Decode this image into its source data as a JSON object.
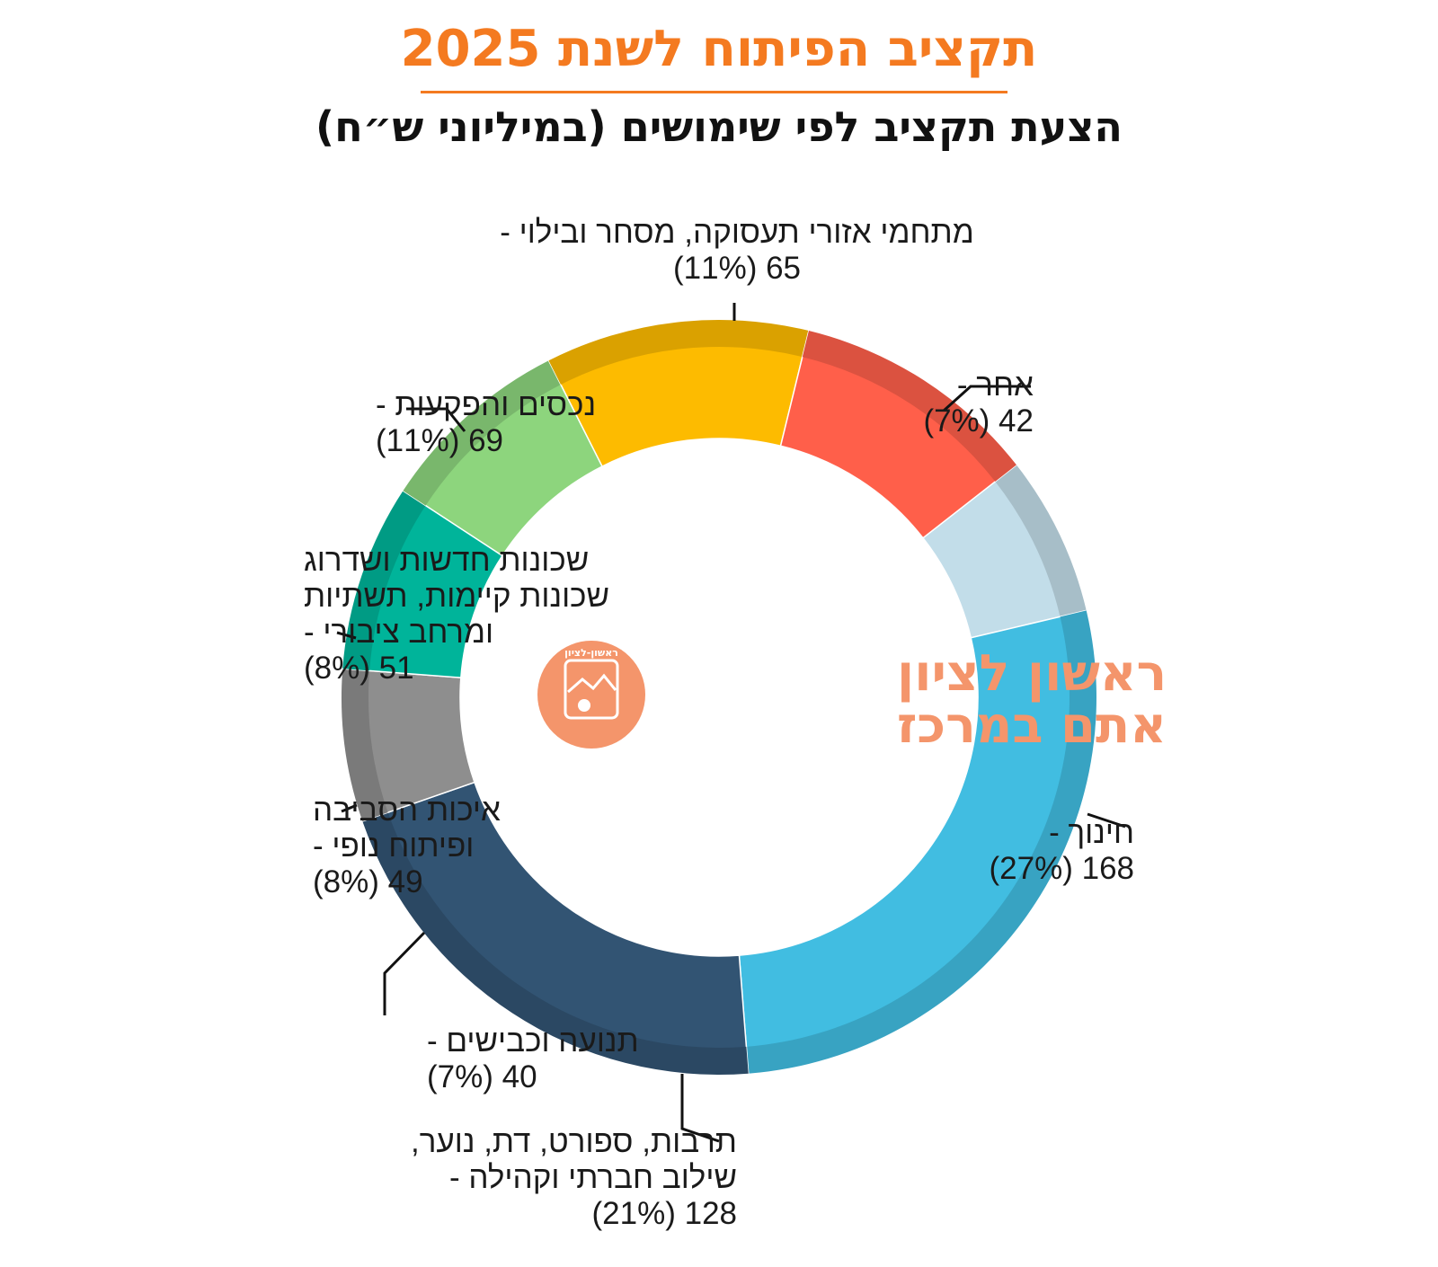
{
  "title": "תקציב הפיתוח לשנת 2025",
  "subtitle": "הצעת תקציב לפי שימושים (במיליוני ש״ח)",
  "logo": {
    "line1": "ראשון לציון",
    "line2": "אתם במרכז",
    "emblem_text": "ראשון-לציון",
    "color": "#f4956b"
  },
  "chart_data": {
    "type": "pie",
    "donut": true,
    "unit": "במיליוני ש״ח",
    "slices": [
      {
        "label": "אחר",
        "value": 42,
        "percent": "7%",
        "color": "#c2dde9",
        "label_lines": [
          "אחר -",
          "(7%) 42"
        ]
      },
      {
        "label": "חינוך",
        "value": 168,
        "percent": "27%",
        "color": "#41bde1",
        "label_lines": [
          "חינוך -",
          "(27%) 168"
        ]
      },
      {
        "label": "תרבות, ספורט, דת, נוער, שילוב חברתי וקהילה",
        "value": 128,
        "percent": "21%",
        "color": "#325473",
        "label_lines": [
          "תרבות, ספורט, דת, נוער,",
          "שילוב חברתי וקהילה -",
          "(21%) 128"
        ]
      },
      {
        "label": "תנועה וכבישים",
        "value": 40,
        "percent": "7%",
        "color": "#8e8e8e",
        "label_lines": [
          "תנועה וכבישים -",
          "(7%) 40"
        ]
      },
      {
        "label": "איכות הסביבה ופיתוח נופי",
        "value": 49,
        "percent": "8%",
        "color": "#00b49a",
        "label_lines": [
          "איכות הסביבה",
          "ופיתוח נופי -",
          "(8%) 49"
        ]
      },
      {
        "label": "שכונות חדשות ושדרוג שכונות קיימות, תשתיות ומרחב ציבורי",
        "value": 51,
        "percent": "8%",
        "color": "#8dd57d",
        "label_lines": [
          "שכונות חדשות ושדרוג",
          "שכונות קיימות, תשתיות",
          "ומרחב ציבורי -",
          "(8%) 51"
        ]
      },
      {
        "label": "נכסים והפקעות",
        "value": 69,
        "percent": "11%",
        "color": "#fdbb00",
        "label_lines": [
          "נכסים והפקעות -",
          "(11%) 69"
        ]
      },
      {
        "label": "מתחמי אזורי תעסוקה, מסחר ובילוי",
        "value": 65,
        "percent": "11%",
        "color": "#ff5f4a",
        "label_lines": [
          "מתחמי אזורי תעסוקה, מסחר ובילוי -",
          "(11%) 65"
        ]
      }
    ]
  }
}
